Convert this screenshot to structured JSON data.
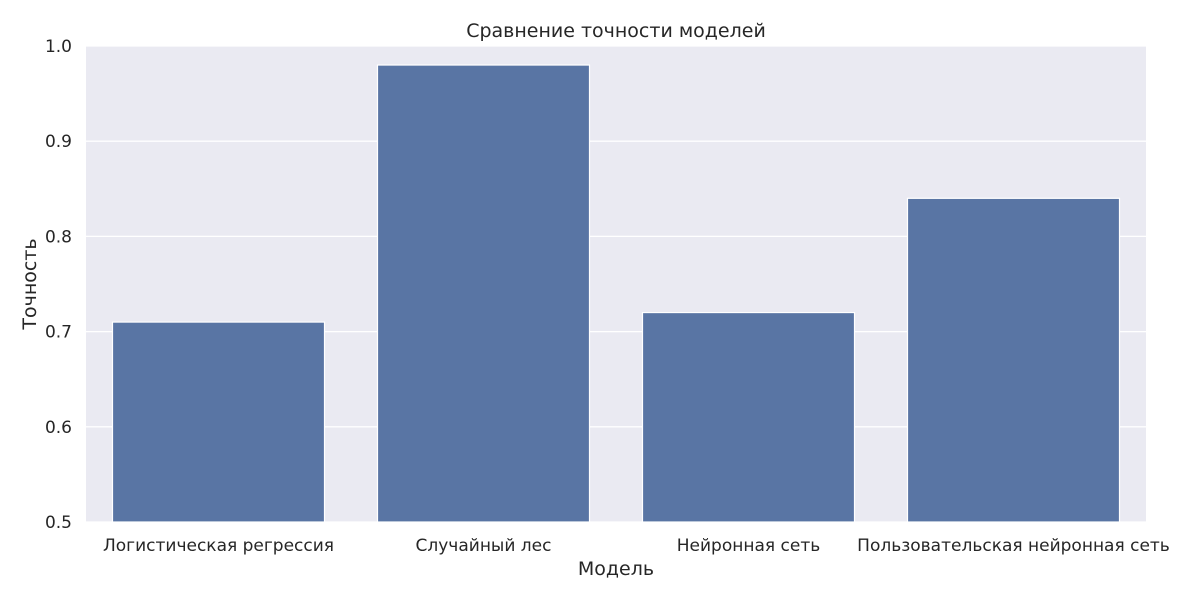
{
  "chart_data": {
    "type": "bar",
    "title": "Сравнение точности моделей",
    "xlabel": "Модель",
    "ylabel": "Точность",
    "categories": [
      "Логистическая регрессия",
      "Случайный лес",
      "Нейронная сеть",
      "Пользовательская нейронная сеть"
    ],
    "values": [
      0.71,
      0.98,
      0.72,
      0.84
    ],
    "ylim": [
      0.5,
      1.0
    ],
    "yticks": [
      "0.5",
      "0.6",
      "0.7",
      "0.8",
      "0.9",
      "1.0"
    ],
    "grid": true,
    "legend": "none",
    "colors": {
      "bar": "#5975a4",
      "plot_background": "#eaeaf2",
      "grid": "#ffffff"
    }
  }
}
